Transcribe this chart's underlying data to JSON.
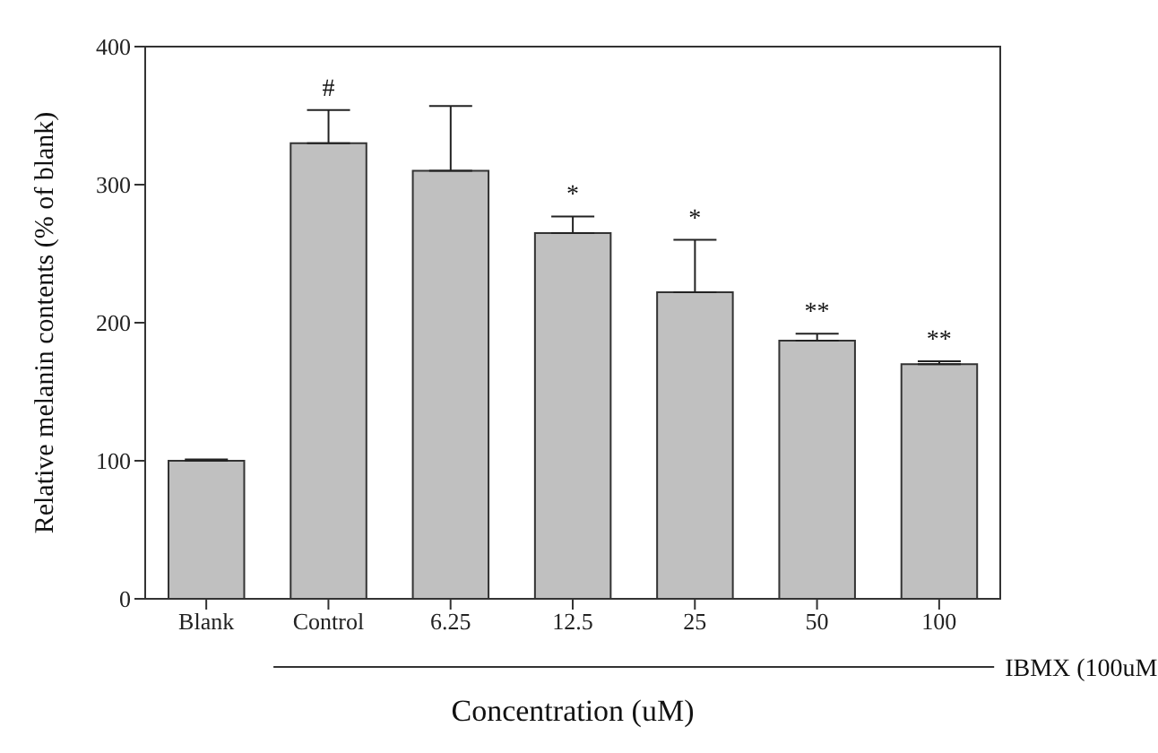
{
  "chart_data": {
    "type": "bar",
    "categories": [
      "Blank",
      "Control",
      "6.25",
      "12.5",
      "25",
      "50",
      "100"
    ],
    "values": [
      100,
      330,
      310,
      265,
      222,
      187,
      170
    ],
    "errors": [
      [
        100,
        101
      ],
      [
        330,
        354
      ],
      [
        310,
        357
      ],
      [
        265,
        277
      ],
      [
        222,
        260
      ],
      [
        187,
        192
      ],
      [
        170,
        172
      ]
    ],
    "color": "#c0c0c0",
    "ylim": [
      0,
      400
    ],
    "yticks": [
      0,
      100,
      200,
      300,
      400
    ],
    "xlabel": "Concentration (uM)",
    "ylabel": "Relative melanin contents (% of blank)",
    "grid": false,
    "legend": false,
    "annotations": [
      {
        "text": "#",
        "x": "Control",
        "y": 354
      },
      {
        "text": "*",
        "x": "12.5",
        "y": 277
      },
      {
        "text": "*",
        "x": "25",
        "y": 260
      },
      {
        "text": "**",
        "x": "50",
        "y": 192
      },
      {
        "text": "**",
        "x": "100",
        "y": 172
      },
      "IBMX (100uM"
    ]
  }
}
